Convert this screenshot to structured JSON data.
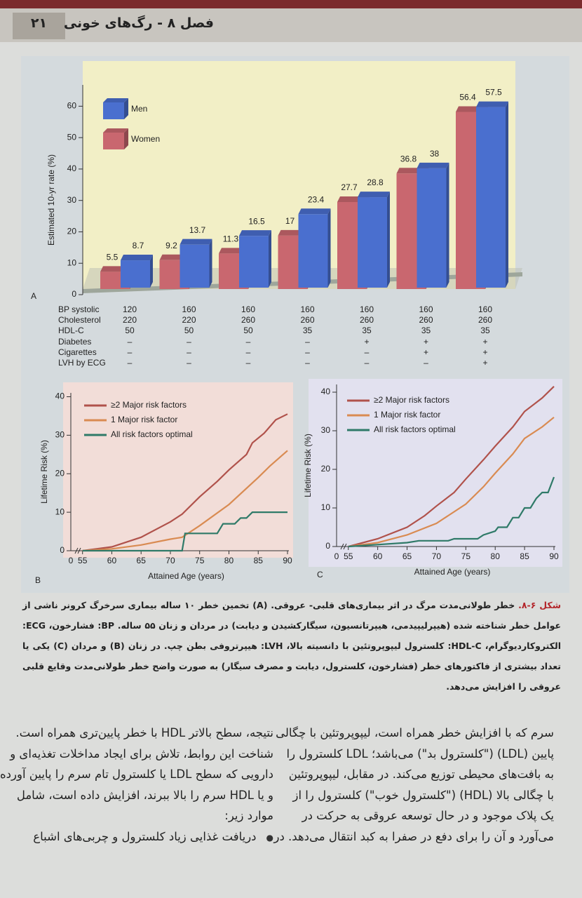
{
  "header": {
    "page_number": "۲۱",
    "chapter_title": "فصل ۸ - رگ‌های خونی"
  },
  "chart_data": [
    {
      "type": "bar3d",
      "panel": "A",
      "y_label": "Estimated 10-yr rate (%)",
      "categories": [
        null,
        null,
        null,
        null,
        null,
        null,
        null
      ],
      "ylim": [
        0,
        65
      ],
      "yticks": [
        0,
        10,
        20,
        30,
        40,
        50,
        60
      ],
      "legend": "top-left",
      "series": [
        {
          "name": "Women",
          "color": "#c9676f",
          "values": [
            5.5,
            9.2,
            11.3,
            17,
            27.7,
            36.8,
            56.4
          ]
        },
        {
          "name": "Men",
          "color": "#4a6fcf",
          "values": [
            8.7,
            13.7,
            16.5,
            23.4,
            28.8,
            38,
            57.5
          ]
        }
      ],
      "legend_order": [
        1,
        0
      ],
      "risk_table": {
        "row_labels": [
          "BP systolic",
          "Cholesterol",
          "HDL-C",
          "Diabetes",
          "Cigarettes",
          "LVH by ECG"
        ],
        "columns": [
          [
            "120",
            "220",
            "50",
            "–",
            "–",
            "–"
          ],
          [
            "160",
            "220",
            "50",
            "–",
            "–",
            "–"
          ],
          [
            "160",
            "260",
            "50",
            "–",
            "–",
            "–"
          ],
          [
            "160",
            "260",
            "35",
            "–",
            "–",
            "–"
          ],
          [
            "160",
            "260",
            "35",
            "+",
            "–",
            "–"
          ],
          [
            "160",
            "260",
            "35",
            "+",
            "+",
            "–"
          ],
          [
            "160",
            "260",
            "35",
            "+",
            "+",
            "+"
          ]
        ]
      }
    },
    {
      "type": "line",
      "panel": "B",
      "x_label": "Attained Age (years)",
      "y_label": "Lifetime Risk (%)",
      "x_origin_label": "0",
      "xlim": [
        53,
        90
      ],
      "xticks": [
        55,
        60,
        65,
        70,
        75,
        80,
        85,
        90
      ],
      "ylim": [
        0,
        41
      ],
      "yticks": [
        0,
        10,
        20,
        30,
        40
      ],
      "background": "#f2ddd8",
      "legend": "top-left",
      "series": [
        {
          "name": "≥2 Major risk factors",
          "color": "#b0524b",
          "x": [
            55,
            60,
            65,
            70,
            72,
            75,
            78,
            80,
            83,
            84,
            86,
            88,
            90
          ],
          "values": [
            0,
            1,
            3.5,
            7.5,
            9.5,
            14,
            18,
            21,
            25,
            28,
            30.5,
            34,
            35.5
          ]
        },
        {
          "name": "1 Major risk factor",
          "color": "#d98b52",
          "x": [
            55,
            60,
            65,
            70,
            72,
            75,
            80,
            85,
            87,
            90
          ],
          "values": [
            0,
            0.5,
            1.5,
            3,
            3.5,
            6.5,
            12,
            19,
            22,
            26
          ]
        },
        {
          "name": "All risk factors optimal",
          "color": "#2f7a68",
          "x": [
            55,
            72,
            72.5,
            78,
            79,
            81,
            82,
            83,
            84,
            90
          ],
          "values": [
            0,
            0,
            4.5,
            4.5,
            7,
            7,
            8.5,
            8.5,
            10,
            10
          ]
        }
      ]
    },
    {
      "type": "line",
      "panel": "C",
      "x_label": "Attained Age (years)",
      "y_label": "Lifetime Risk (%)",
      "x_origin_label": "0",
      "xlim": [
        53,
        90
      ],
      "xticks": [
        55,
        60,
        65,
        70,
        75,
        80,
        85,
        90
      ],
      "ylim": [
        0,
        42
      ],
      "yticks": [
        0,
        10,
        20,
        30,
        40
      ],
      "background": "#e2e1ef",
      "legend": "top-left",
      "series": [
        {
          "name": "≥2 Major risk factors",
          "color": "#b0524b",
          "x": [
            55,
            60,
            65,
            68,
            70,
            73,
            75,
            78,
            80,
            83,
            85,
            88,
            90
          ],
          "values": [
            0,
            2,
            5,
            8,
            10.5,
            14,
            17.5,
            22.5,
            26,
            31,
            35,
            38.5,
            41.5
          ]
        },
        {
          "name": "1 Major risk factor",
          "color": "#d98b52",
          "x": [
            55,
            60,
            65,
            70,
            72,
            75,
            78,
            80,
            83,
            85,
            88,
            90
          ],
          "values": [
            0,
            1,
            3,
            6,
            8,
            11,
            15.5,
            19,
            24,
            28,
            31,
            33.5
          ]
        },
        {
          "name": "All risk factors optimal",
          "color": "#2f7a68",
          "x": [
            55,
            60,
            65,
            67,
            72,
            73,
            77,
            78,
            80,
            80.5,
            82,
            83,
            84,
            85,
            86,
            87,
            88,
            89,
            90
          ],
          "values": [
            0,
            0.5,
            1,
            1.5,
            1.5,
            2,
            2,
            3,
            4,
            5,
            5,
            7.5,
            7.5,
            10,
            10,
            12.5,
            14,
            14,
            18
          ]
        }
      ]
    }
  ],
  "caption": {
    "label": "شکل ۶-۸.",
    "text": "خطر طولانی‌مدت مرگ در اثر بیماری‌های قلبی- عروقی. (A) تخمین خطر ۱۰ ساله بیماری سرخرگ کرونر ناشی از عوامل خطر شناخته شده (هیپرلیپیدمی، هیپرتانسیون، سیگارکشیدن و دیابت) در مردان و زنان ۵۵ ساله. BP: فشارخون، ECG: الکتروکاردیوگرام، HDL-C: کلسترول لیپوپروتئین با دانسیته بالا، LVH: هیپرتروفی بطن چپ. در زنان (B) و مردان (C) یکی یا تعداد بیشتری از فاکتورهای خطر (فشارخون، کلسترول، دیابت و مصرف سیگار) به صورت واضح خطر طولانی‌مدت وقایع قلبی عروقی را افزایش می‌دهد."
  },
  "body": {
    "right_column": [
      "سرم که با افزایش خطر همراه است، لیپوپروتئین با چگالی",
      "پایین (LDL) (\"کلسترول بد\") می‌باشد؛ LDL کلسترول را",
      "به بافت‌های محیطی توزیع می‌کند. در مقابل، لیپوپروتئین",
      "با چگالی بالا (HDL) (\"کلسترول خوب\") کلسترول را از",
      "یک پلاک موجود و در حال توسعه عروقی به حرکت در",
      "می‌آورد و آن را برای دفع در صفرا به کبد انتقال می‌دهد. در"
    ],
    "left_column": [
      "نتیجه، سطح بالاتر HDL با خطر پایین‌تری همراه است.",
      "شناخت این روابط، تلاش برای ایجاد مداخلات تغذیه‌ای و",
      "دارویی که سطح LDL یا کلسترول تام سرم را پایین آورده",
      "و یا HDL سرم را بالا ببرند، افزایش داده است، شامل",
      "موارد زیر:"
    ],
    "bullets": [
      "دریافت غذایی زیاد کلسترول و چربی‌های اشباع"
    ]
  }
}
